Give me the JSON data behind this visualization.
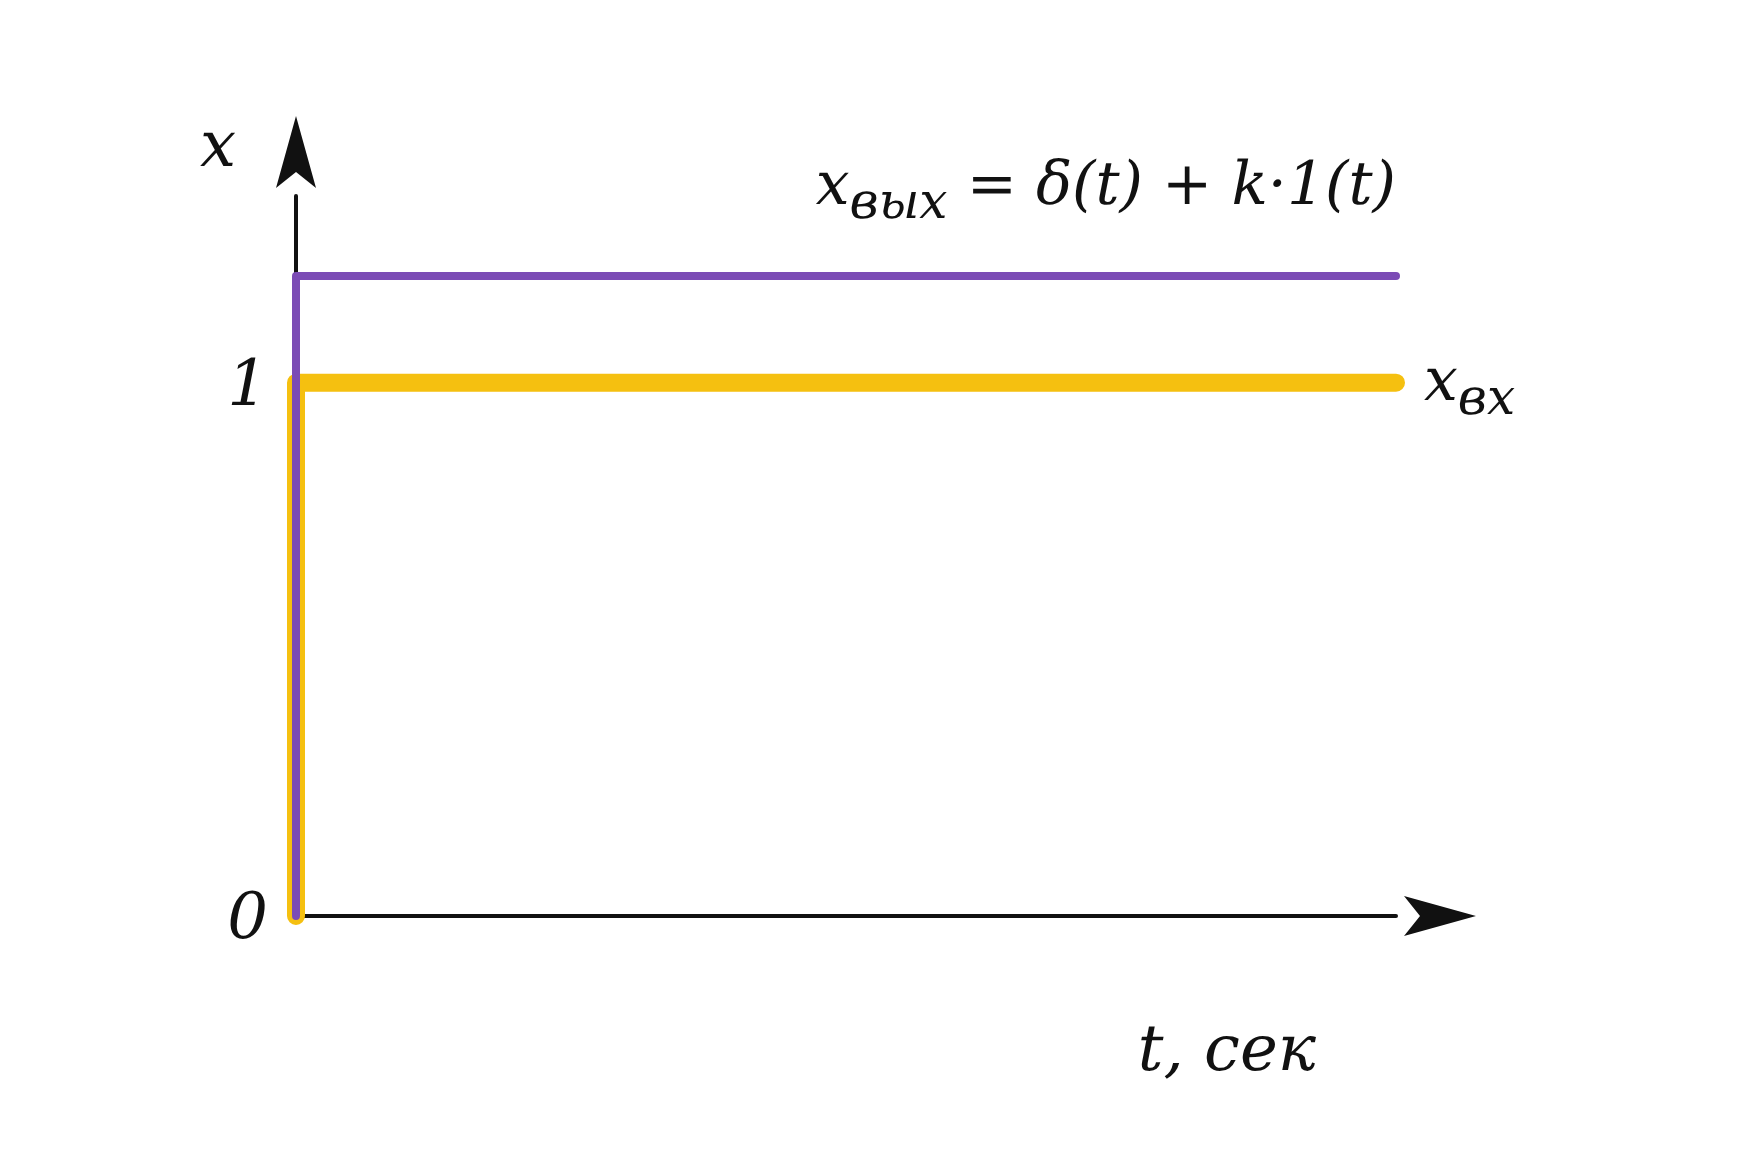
{
  "chart_data": {
    "type": "step",
    "xlabel": "t, сек",
    "ylabel": "x",
    "categories": [
      null,
      null,
      null,
      null,
      null,
      null,
      null,
      null,
      null,
      null,
      null
    ],
    "ylim": [
      0,
      1.35
    ],
    "yticks": [
      0,
      1
    ],
    "grid": false,
    "legend": false,
    "marker": "none",
    "series": [
      {
        "name": "x$_{вх}$",
        "color": "#f5c010",
        "values": [
          0,
          1,
          1,
          1,
          1,
          1,
          1,
          1,
          1,
          1,
          1
        ]
      },
      {
        "name": "x$_{вых}$ = δ(t) + k·1(t)",
        "color": "#7b4bb5",
        "values": [
          0,
          1.2,
          1.2,
          1.2,
          1.2,
          1.2,
          1.2,
          1.2,
          1.2,
          1.2,
          1.2
        ]
      }
    ]
  }
}
